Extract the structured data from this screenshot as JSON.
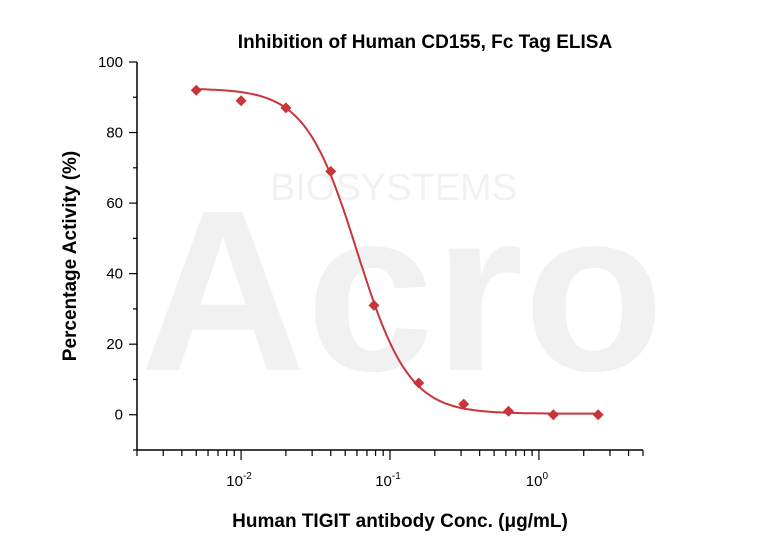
{
  "chart_data": {
    "type": "scatter",
    "title": "Inhibition of Human CD155, Fc Tag ELISA",
    "xlabel": "Human TIGIT antibody Conc. (μg/mL)",
    "ylabel": "Percentage Activity (%)",
    "xscale": "log",
    "xlim": [
      0.002,
      5
    ],
    "ylim": [
      -10,
      100
    ],
    "xticks": [
      {
        "value": 0.01,
        "base": "10",
        "exp": "-2"
      },
      {
        "value": 0.1,
        "base": "10",
        "exp": "-1"
      },
      {
        "value": 1,
        "base": "10",
        "exp": "0"
      }
    ],
    "yticks": [
      0,
      20,
      40,
      60,
      80,
      100
    ],
    "grid": false,
    "series": [
      {
        "x": [
          0.005,
          0.01,
          0.02,
          0.04,
          0.078,
          0.156,
          0.3125,
          0.625,
          1.25,
          2.5
        ],
        "y": [
          92,
          89,
          87,
          69,
          31,
          9,
          3,
          1,
          0,
          0
        ],
        "marker": "diamond",
        "color": "#c8353a",
        "fit": {
          "model": "4PL",
          "top": 92.5,
          "bottom": 0.3,
          "ec50": 0.06,
          "hill": 2.5
        }
      }
    ],
    "watermark": "Acro BIOSYSTEMS"
  }
}
